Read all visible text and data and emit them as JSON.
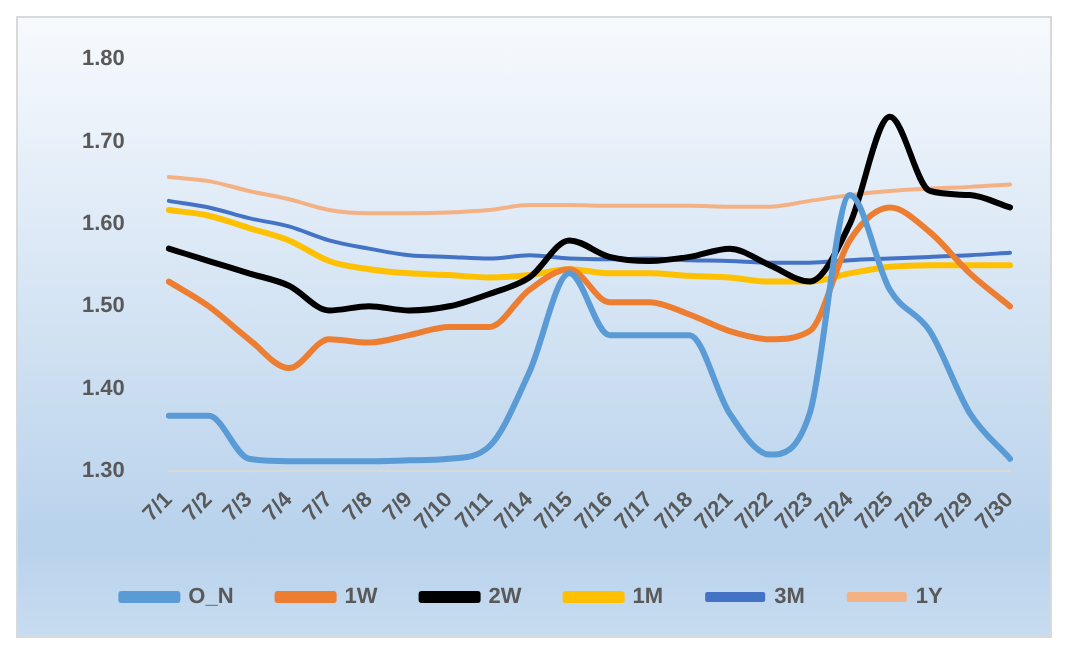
{
  "chart_data": {
    "type": "line",
    "categories": [
      "7/1",
      "7/2",
      "7/3",
      "7/4",
      "7/7",
      "7/8",
      "7/9",
      "7/10",
      "7/11",
      "7/14",
      "7/15",
      "7/16",
      "7/17",
      "7/18",
      "7/21",
      "7/22",
      "7/23",
      "7/24",
      "7/25",
      "7/28",
      "7/29",
      "7/30"
    ],
    "series": [
      {
        "name": "O_N",
        "color": "#5b9bd5",
        "values": [
          1.367,
          1.367,
          1.315,
          1.312,
          1.312,
          1.312,
          1.313,
          1.315,
          1.33,
          1.42,
          1.54,
          1.465,
          1.465,
          1.465,
          1.37,
          1.32,
          1.37,
          1.635,
          1.52,
          1.47,
          1.37,
          1.315
        ]
      },
      {
        "name": "1W",
        "color": "#ed7d31",
        "values": [
          1.53,
          1.5,
          1.46,
          1.425,
          1.46,
          1.456,
          1.465,
          1.475,
          1.475,
          1.52,
          1.545,
          1.505,
          1.505,
          1.49,
          1.47,
          1.46,
          1.47,
          1.58,
          1.62,
          1.59,
          1.54,
          1.5
        ]
      },
      {
        "name": "2W",
        "color": "#000000",
        "values": [
          1.57,
          1.555,
          1.54,
          1.525,
          1.495,
          1.5,
          1.495,
          1.5,
          1.515,
          1.535,
          1.58,
          1.56,
          1.555,
          1.56,
          1.57,
          1.55,
          1.53,
          1.6,
          1.73,
          1.64,
          1.635,
          1.62
        ]
      },
      {
        "name": "1M",
        "color": "#ffc000",
        "values": [
          1.617,
          1.61,
          1.595,
          1.58,
          1.555,
          1.545,
          1.54,
          1.538,
          1.535,
          1.538,
          1.545,
          1.54,
          1.54,
          1.537,
          1.535,
          1.53,
          1.53,
          1.54,
          1.548,
          1.55,
          1.55,
          1.55
        ]
      },
      {
        "name": "3M",
        "color": "#4472c4",
        "values": [
          1.628,
          1.62,
          1.607,
          1.597,
          1.58,
          1.57,
          1.562,
          1.56,
          1.558,
          1.562,
          1.558,
          1.557,
          1.558,
          1.556,
          1.555,
          1.553,
          1.553,
          1.556,
          1.558,
          1.56,
          1.562,
          1.565
        ]
      },
      {
        "name": "1Y",
        "color": "#f4b183",
        "values": [
          1.657,
          1.652,
          1.64,
          1.63,
          1.617,
          1.613,
          1.613,
          1.614,
          1.617,
          1.623,
          1.623,
          1.622,
          1.622,
          1.622,
          1.621,
          1.621,
          1.628,
          1.635,
          1.64,
          1.643,
          1.645,
          1.648
        ]
      }
    ],
    "ylim": [
      1.3,
      1.8
    ],
    "yticks": [
      {
        "value": 1.3,
        "label": "1.30"
      },
      {
        "value": 1.4,
        "label": "1.40"
      },
      {
        "value": 1.5,
        "label": "1.50"
      },
      {
        "value": 1.6,
        "label": "1.60"
      },
      {
        "value": 1.7,
        "label": "1.70"
      },
      {
        "value": 1.8,
        "label": "1.80"
      }
    ],
    "grid": false,
    "legend": "bottom",
    "marker": "none",
    "line_style": "solid"
  }
}
